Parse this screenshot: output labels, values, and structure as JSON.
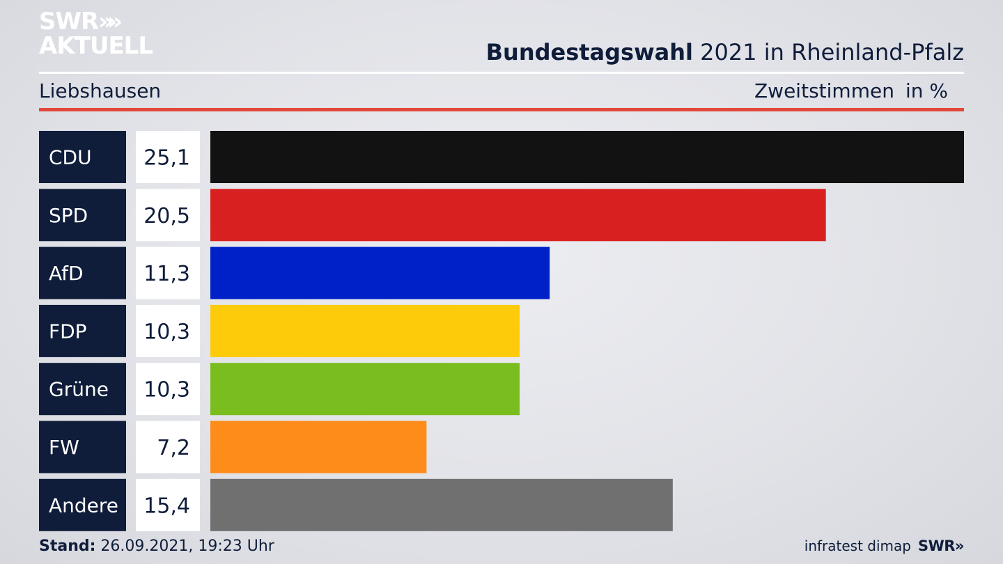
{
  "header": {
    "logo_line1": "SWR",
    "logo_chevrons": "»",
    "logo_line2": "AKTUELL",
    "title_bold": "Bundestagswahl",
    "title_rest": " 2021 in Rheinland-Pfalz",
    "location": "Liebshausen",
    "measure": "Zweitstimmen",
    "unit": "in %"
  },
  "footer": {
    "stand_label": "Stand:",
    "stand_value": " 26.09.2021, 19:23 Uhr",
    "source": "infratest dimap",
    "brand": "SWR»"
  },
  "colors": {
    "label_box": "#0f1d3a",
    "value_box": "#ffffff",
    "accent_rule": "#e2483c"
  },
  "chart_data": {
    "type": "bar",
    "orientation": "horizontal",
    "categories": [
      "CDU",
      "SPD",
      "AfD",
      "FDP",
      "Grüne",
      "FW",
      "Andere"
    ],
    "values": [
      25.1,
      20.5,
      11.3,
      10.3,
      10.3,
      7.2,
      15.4
    ],
    "value_labels": [
      "25,1",
      "20,5",
      "11,3",
      "10,3",
      "10,3",
      "7,2",
      "15,4"
    ],
    "colors": [
      "#121212",
      "#d92020",
      "#0020c8",
      "#fecb0a",
      "#7abd1e",
      "#fe8c1a",
      "#707070"
    ],
    "xlim": [
      0,
      25.1
    ],
    "grid": false,
    "legend": "none"
  }
}
